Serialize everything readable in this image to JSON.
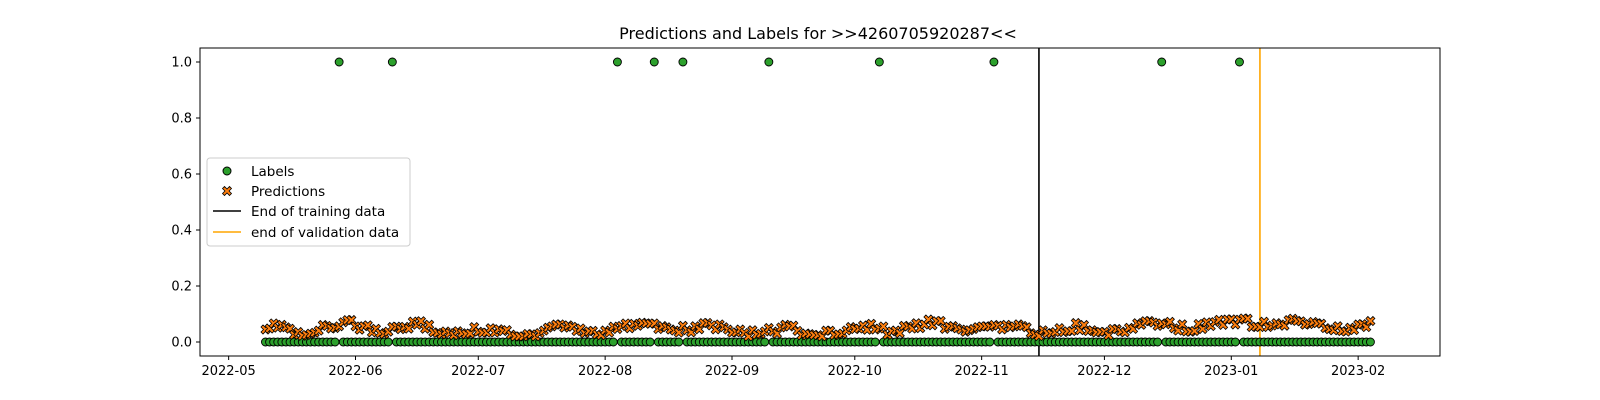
{
  "chart_data": {
    "type": "scatter",
    "title": "Predictions and Labels for >>4260705920287<<",
    "xlabel": "",
    "ylabel": "",
    "x_range": [
      "2022-04-24",
      "2023-02-21"
    ],
    "y_range": [
      -0.05,
      1.05
    ],
    "x_ticks": [
      "2022-05",
      "2022-06",
      "2022-07",
      "2022-08",
      "2022-09",
      "2022-10",
      "2022-11",
      "2022-12",
      "2023-01",
      "2023-02"
    ],
    "y_ticks": [
      "0.0",
      "0.2",
      "0.4",
      "0.6",
      "0.8",
      "1.0"
    ],
    "grid": false,
    "legend_position": "center-left",
    "series": [
      {
        "name": "Labels",
        "marker": "circle",
        "color": "#2ca02c",
        "start_date": "2022-05-10",
        "end_date": "2023-02-04",
        "default_value": 0,
        "x_value_1": [
          "2022-05-28",
          "2022-06-10",
          "2022-08-04",
          "2022-08-13",
          "2022-08-20",
          "2022-09-10",
          "2022-10-07",
          "2022-11-04",
          "2022-12-15",
          "2023-01-03"
        ]
      },
      {
        "name": "Predictions",
        "marker": "X",
        "color": "#ff7f0e",
        "start_date": "2022-05-10",
        "end_date": "2023-02-04",
        "approx_mean": 0.045,
        "approx_range": [
          0.02,
          0.09
        ]
      }
    ],
    "vlines": [
      {
        "name": "End of training data",
        "x": "2022-11-15",
        "color": "#000000"
      },
      {
        "name": "end of validation data",
        "x": "2023-01-08",
        "color": "#ffa500"
      }
    ]
  }
}
